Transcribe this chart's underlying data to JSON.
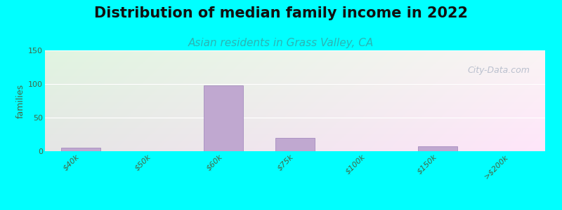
{
  "title": "Distribution of median family income in 2022",
  "subtitle": "Asian residents in Grass Valley, CA",
  "ylabel": "families",
  "categories": [
    "$40k",
    "$50k",
    "$60k",
    "$75k",
    "$100k",
    "$150k",
    ">$200k"
  ],
  "bar_labels": [
    "$40k",
    "$50k",
    "$60k",
    "$75k",
    "$100k",
    "$150k",
    ">$200k"
  ],
  "values": [
    5,
    0,
    98,
    20,
    0,
    7,
    0
  ],
  "bar_color": "#c0a8d0",
  "bar_edge_color": "#9b80b8",
  "ylim": [
    0,
    150
  ],
  "yticks": [
    0,
    50,
    100,
    150
  ],
  "background_cyan": "#00ffff",
  "title_fontsize": 15,
  "subtitle_fontsize": 11,
  "subtitle_color": "#2ab5b5",
  "watermark_text": "City-Data.com",
  "watermark_color": "#b0b8c8",
  "tick_color": "#446644",
  "ylabel_color": "#446644"
}
